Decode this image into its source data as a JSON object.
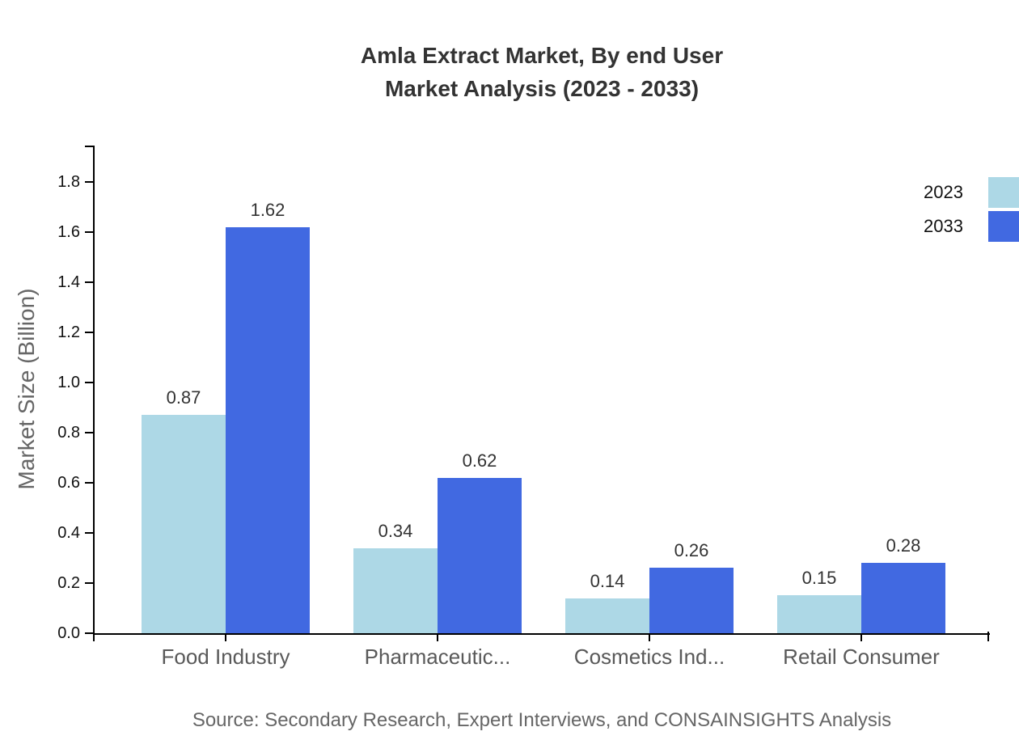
{
  "title": {
    "line1": "Amla Extract Market, By end User",
    "line2": "Market Analysis (2023 - 2033)"
  },
  "source_note": "Source: Secondary Research, Expert Interviews, and CONSAINSIGHTS Analysis",
  "legend": {
    "items": [
      {
        "label": "2023",
        "color": "#ADD8E6"
      },
      {
        "label": "2033",
        "color": "#4169E1"
      }
    ],
    "position": "top-right"
  },
  "chart_data": {
    "type": "bar",
    "title": "Amla Extract Market, By end User Market Analysis (2023 - 2033)",
    "categories": [
      "Food Industry",
      "Pharmaceutic...",
      "Cosmetics Ind...",
      "Retail Consumer"
    ],
    "series": [
      {
        "name": "2023",
        "color": "#ADD8E6",
        "values": [
          0.87,
          0.34,
          0.14,
          0.15
        ]
      },
      {
        "name": "2033",
        "color": "#4169E1",
        "values": [
          1.62,
          0.62,
          0.26,
          0.28
        ]
      }
    ],
    "xlabel": "",
    "ylabel": "Market Size (Billion)",
    "ylim": [
      0,
      1.945
    ],
    "yticks": [
      0.0,
      0.2,
      0.4,
      0.6,
      0.8,
      1.0,
      1.2,
      1.4,
      1.6,
      1.8
    ],
    "grid": false,
    "bar_value_labels": true
  },
  "colors": {
    "title_text": "#333333",
    "axis": "#000000",
    "tick_label": "#111111",
    "category_label": "#595959",
    "muted_text": "#666666",
    "background": "#ffffff"
  }
}
